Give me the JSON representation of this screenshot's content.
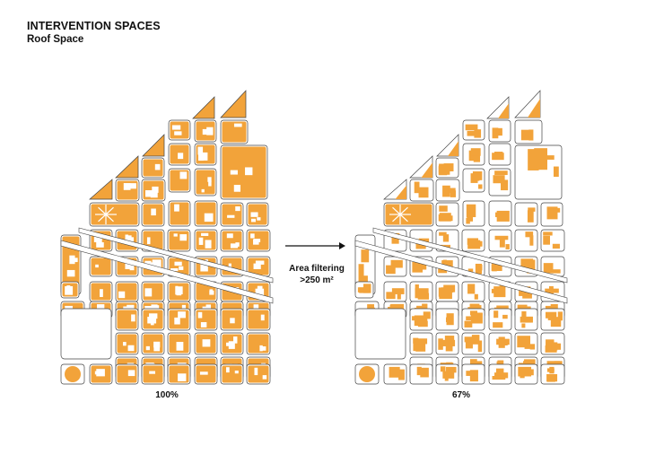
{
  "header": {
    "title": "INTERVENTION SPACES",
    "subtitle": "Roof Space"
  },
  "colors": {
    "roof": "#f2a33a",
    "outline": "#444444",
    "background": "#ffffff"
  },
  "maps": [
    {
      "name": "all-roofs",
      "percent_label": "100%",
      "coverage_fraction": 1.0
    },
    {
      "name": "filtered-roofs",
      "percent_label": "67%",
      "coverage_fraction": 0.67
    }
  ],
  "transition": {
    "line1": "Area filtering",
    "line2": ">250 m²"
  }
}
